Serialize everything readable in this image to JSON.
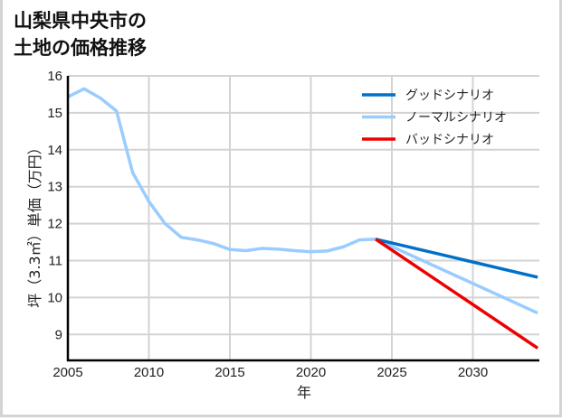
{
  "title": "山梨県中央市の\n土地の価格推移",
  "chart_data": {
    "type": "line",
    "title": "山梨県中央市の土地の価格推移",
    "xlabel": "年",
    "ylabel": "坪（3.3㎡）単価（万円）",
    "xlim": [
      2005,
      2034
    ],
    "ylim": [
      8.3,
      16
    ],
    "x_ticks": [
      2005,
      2010,
      2015,
      2020,
      2025,
      2030
    ],
    "y_ticks": [
      9,
      10,
      11,
      12,
      13,
      14,
      15,
      16
    ],
    "grid": true,
    "legend_position": "upper right",
    "series": [
      {
        "name": "ノーマルシナリオ",
        "color": "#99ccff",
        "x": [
          2005,
          2006,
          2007,
          2008,
          2009,
          2010,
          2011,
          2012,
          2013,
          2014,
          2015,
          2016,
          2017,
          2018,
          2019,
          2020,
          2021,
          2022,
          2023,
          2024,
          2034
        ],
        "values": [
          15.43,
          15.65,
          15.4,
          15.05,
          13.38,
          12.6,
          12.0,
          11.63,
          11.56,
          11.46,
          11.3,
          11.27,
          11.33,
          11.31,
          11.27,
          11.24,
          11.26,
          11.37,
          11.56,
          11.58,
          9.58
        ]
      },
      {
        "name": "グッドシナリオ",
        "color": "#0070c8",
        "x": [
          2024,
          2034
        ],
        "values": [
          11.58,
          10.55
        ]
      },
      {
        "name": "バッドシナリオ",
        "color": "#ee0000",
        "x": [
          2024,
          2034
        ],
        "values": [
          11.58,
          8.63
        ]
      }
    ],
    "legend": [
      {
        "label": "グッドシナリオ",
        "color": "#0070c8"
      },
      {
        "label": "ノーマルシナリオ",
        "color": "#99ccff"
      },
      {
        "label": "バッドシナリオ",
        "color": "#ee0000"
      }
    ]
  }
}
